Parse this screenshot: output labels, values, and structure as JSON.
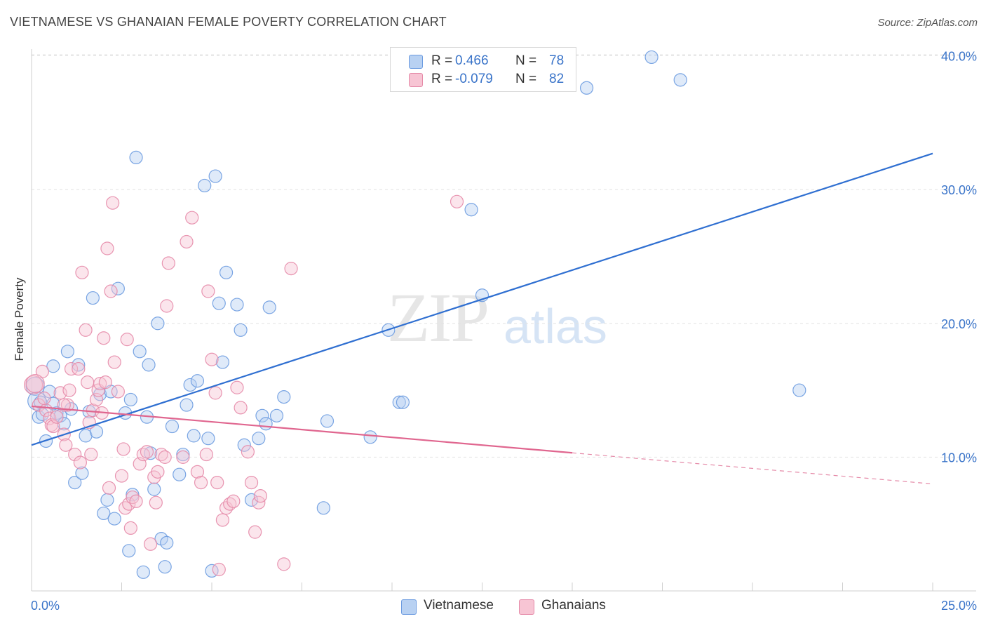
{
  "title": "VIETNAMESE VS GHANAIAN FEMALE POVERTY CORRELATION CHART",
  "source": "Source: ZipAtlas.com",
  "watermark": {
    "zip": "ZIP",
    "atlas": "atlas"
  },
  "legend": {
    "rows": [
      {
        "name": "Vietnamese",
        "r_label": "R =",
        "r_value": "0.466",
        "n_label": "N =",
        "n_value": "78",
        "color": "#b8d1f2",
        "edge": "#6b9be0"
      },
      {
        "name": "Ghanaians",
        "r_label": "R =",
        "r_value": "-0.079",
        "n_label": "N =",
        "n_value": "82",
        "color": "#f7c5d4",
        "edge": "#e58aa8"
      }
    ]
  },
  "bottom_legend": {
    "vietnamese": "Vietnamese",
    "ghanaians": "Ghanaians"
  },
  "chart_data": {
    "type": "scatter",
    "title": "VIETNAMESE VS GHANAIAN FEMALE POVERTY CORRELATION CHART",
    "xlabel": "",
    "ylabel": "Female Poverty",
    "xlim": [
      0,
      25
    ],
    "ylim": [
      0,
      40.5
    ],
    "x_tick_labels": [
      "0.0%",
      "25.0%"
    ],
    "y_ticks": [
      10,
      20,
      30,
      40
    ],
    "y_tick_labels": [
      "10.0%",
      "20.0%",
      "30.0%",
      "40.0%"
    ],
    "grid": true,
    "series": [
      {
        "name": "Vietnamese",
        "color": "#6b9be0",
        "fill": "#b8d1f2",
        "trend": {
          "x": [
            0,
            25
          ],
          "y": [
            10.9,
            32.7
          ],
          "dashed_from": null
        },
        "points": [
          [
            0.1,
            15.3
          ],
          [
            0.2,
            13.0
          ],
          [
            0.3,
            13.2
          ],
          [
            0.4,
            11.2
          ],
          [
            0.5,
            14.9
          ],
          [
            0.6,
            16.8
          ],
          [
            0.7,
            13.3
          ],
          [
            0.8,
            13.1
          ],
          [
            0.9,
            12.5
          ],
          [
            1.0,
            17.9
          ],
          [
            1.1,
            13.6
          ],
          [
            1.2,
            8.1
          ],
          [
            1.3,
            16.9
          ],
          [
            1.4,
            8.8
          ],
          [
            1.5,
            11.6
          ],
          [
            1.6,
            13.4
          ],
          [
            1.7,
            21.9
          ],
          [
            1.8,
            11.9
          ],
          [
            1.9,
            14.7
          ],
          [
            2.0,
            5.8
          ],
          [
            2.1,
            6.8
          ],
          [
            2.2,
            14.9
          ],
          [
            2.3,
            5.4
          ],
          [
            2.4,
            22.6
          ],
          [
            2.6,
            13.3
          ],
          [
            2.7,
            3.0
          ],
          [
            2.75,
            14.3
          ],
          [
            2.8,
            7.2
          ],
          [
            2.9,
            32.4
          ],
          [
            3.0,
            17.9
          ],
          [
            3.1,
            1.4
          ],
          [
            3.2,
            13.0
          ],
          [
            3.25,
            16.9
          ],
          [
            3.3,
            10.3
          ],
          [
            3.4,
            7.6
          ],
          [
            3.5,
            20.0
          ],
          [
            3.6,
            3.9
          ],
          [
            3.7,
            1.8
          ],
          [
            3.75,
            3.6
          ],
          [
            3.9,
            12.3
          ],
          [
            4.1,
            8.7
          ],
          [
            4.2,
            10.2
          ],
          [
            4.3,
            13.9
          ],
          [
            4.4,
            15.4
          ],
          [
            4.5,
            11.6
          ],
          [
            4.6,
            15.7
          ],
          [
            4.8,
            30.3
          ],
          [
            4.9,
            11.4
          ],
          [
            5.0,
            1.5
          ],
          [
            5.1,
            31.0
          ],
          [
            5.2,
            21.5
          ],
          [
            5.3,
            17.1
          ],
          [
            5.4,
            23.8
          ],
          [
            5.7,
            21.4
          ],
          [
            5.8,
            19.5
          ],
          [
            5.9,
            10.9
          ],
          [
            6.1,
            6.8
          ],
          [
            6.3,
            11.4
          ],
          [
            6.4,
            13.1
          ],
          [
            6.5,
            12.5
          ],
          [
            6.6,
            21.2
          ],
          [
            6.8,
            13.1
          ],
          [
            7.0,
            14.5
          ],
          [
            8.1,
            6.2
          ],
          [
            8.2,
            12.7
          ],
          [
            9.4,
            11.5
          ],
          [
            9.9,
            19.5
          ],
          [
            10.2,
            14.1
          ],
          [
            10.3,
            14.1
          ],
          [
            12.2,
            28.5
          ],
          [
            12.5,
            22.1
          ],
          [
            15.4,
            37.6
          ],
          [
            17.2,
            39.9
          ],
          [
            18.0,
            38.2
          ],
          [
            21.3,
            15.0
          ],
          [
            0.15,
            14.2
          ],
          [
            0.25,
            14.1
          ],
          [
            0.6,
            14.0
          ]
        ]
      },
      {
        "name": "Ghanaians",
        "color": "#e58aa8",
        "fill": "#f7c5d4",
        "trend": {
          "x": [
            0,
            25
          ],
          "y": [
            13.8,
            8.0
          ],
          "solid_until_x": 15.0
        },
        "points": [
          [
            0.05,
            15.4
          ],
          [
            0.2,
            13.9
          ],
          [
            0.3,
            16.4
          ],
          [
            0.4,
            13.5
          ],
          [
            0.5,
            12.9
          ],
          [
            0.55,
            12.4
          ],
          [
            0.6,
            12.3
          ],
          [
            0.7,
            13.0
          ],
          [
            0.8,
            14.8
          ],
          [
            0.9,
            11.7
          ],
          [
            0.95,
            10.9
          ],
          [
            1.0,
            13.9
          ],
          [
            1.05,
            15.0
          ],
          [
            1.1,
            16.6
          ],
          [
            1.2,
            10.2
          ],
          [
            1.3,
            16.6
          ],
          [
            1.35,
            9.6
          ],
          [
            1.4,
            23.8
          ],
          [
            1.5,
            19.5
          ],
          [
            1.55,
            15.6
          ],
          [
            1.6,
            12.6
          ],
          [
            1.65,
            10.2
          ],
          [
            1.7,
            13.5
          ],
          [
            1.8,
            14.3
          ],
          [
            1.85,
            15.0
          ],
          [
            1.9,
            15.5
          ],
          [
            1.95,
            13.3
          ],
          [
            2.0,
            18.9
          ],
          [
            2.05,
            15.6
          ],
          [
            2.1,
            25.6
          ],
          [
            2.15,
            7.7
          ],
          [
            2.2,
            22.4
          ],
          [
            2.25,
            29.0
          ],
          [
            2.3,
            17.1
          ],
          [
            2.4,
            14.9
          ],
          [
            2.5,
            8.6
          ],
          [
            2.55,
            10.6
          ],
          [
            2.6,
            6.2
          ],
          [
            2.65,
            18.8
          ],
          [
            2.7,
            6.5
          ],
          [
            2.75,
            4.7
          ],
          [
            2.8,
            7.0
          ],
          [
            2.9,
            6.7
          ],
          [
            3.0,
            9.5
          ],
          [
            3.1,
            10.2
          ],
          [
            3.2,
            10.4
          ],
          [
            3.3,
            3.5
          ],
          [
            3.4,
            8.5
          ],
          [
            3.45,
            6.6
          ],
          [
            3.5,
            8.9
          ],
          [
            3.6,
            10.2
          ],
          [
            3.7,
            10.0
          ],
          [
            3.75,
            21.3
          ],
          [
            3.8,
            24.5
          ],
          [
            4.2,
            10.0
          ],
          [
            4.3,
            26.1
          ],
          [
            4.45,
            27.9
          ],
          [
            4.6,
            8.9
          ],
          [
            4.7,
            8.1
          ],
          [
            4.85,
            10.2
          ],
          [
            4.9,
            22.4
          ],
          [
            5.0,
            17.3
          ],
          [
            5.1,
            14.8
          ],
          [
            5.15,
            8.1
          ],
          [
            5.2,
            1.6
          ],
          [
            5.3,
            5.3
          ],
          [
            5.4,
            6.2
          ],
          [
            5.5,
            6.5
          ],
          [
            5.6,
            6.7
          ],
          [
            5.7,
            15.2
          ],
          [
            5.8,
            13.7
          ],
          [
            6.0,
            10.4
          ],
          [
            6.1,
            8.1
          ],
          [
            6.2,
            4.4
          ],
          [
            6.3,
            6.6
          ],
          [
            6.35,
            7.1
          ],
          [
            7.0,
            2.0
          ],
          [
            7.2,
            24.1
          ],
          [
            11.8,
            29.1
          ],
          [
            0.1,
            15.5
          ],
          [
            0.35,
            14.4
          ],
          [
            0.9,
            13.9
          ]
        ]
      }
    ]
  }
}
